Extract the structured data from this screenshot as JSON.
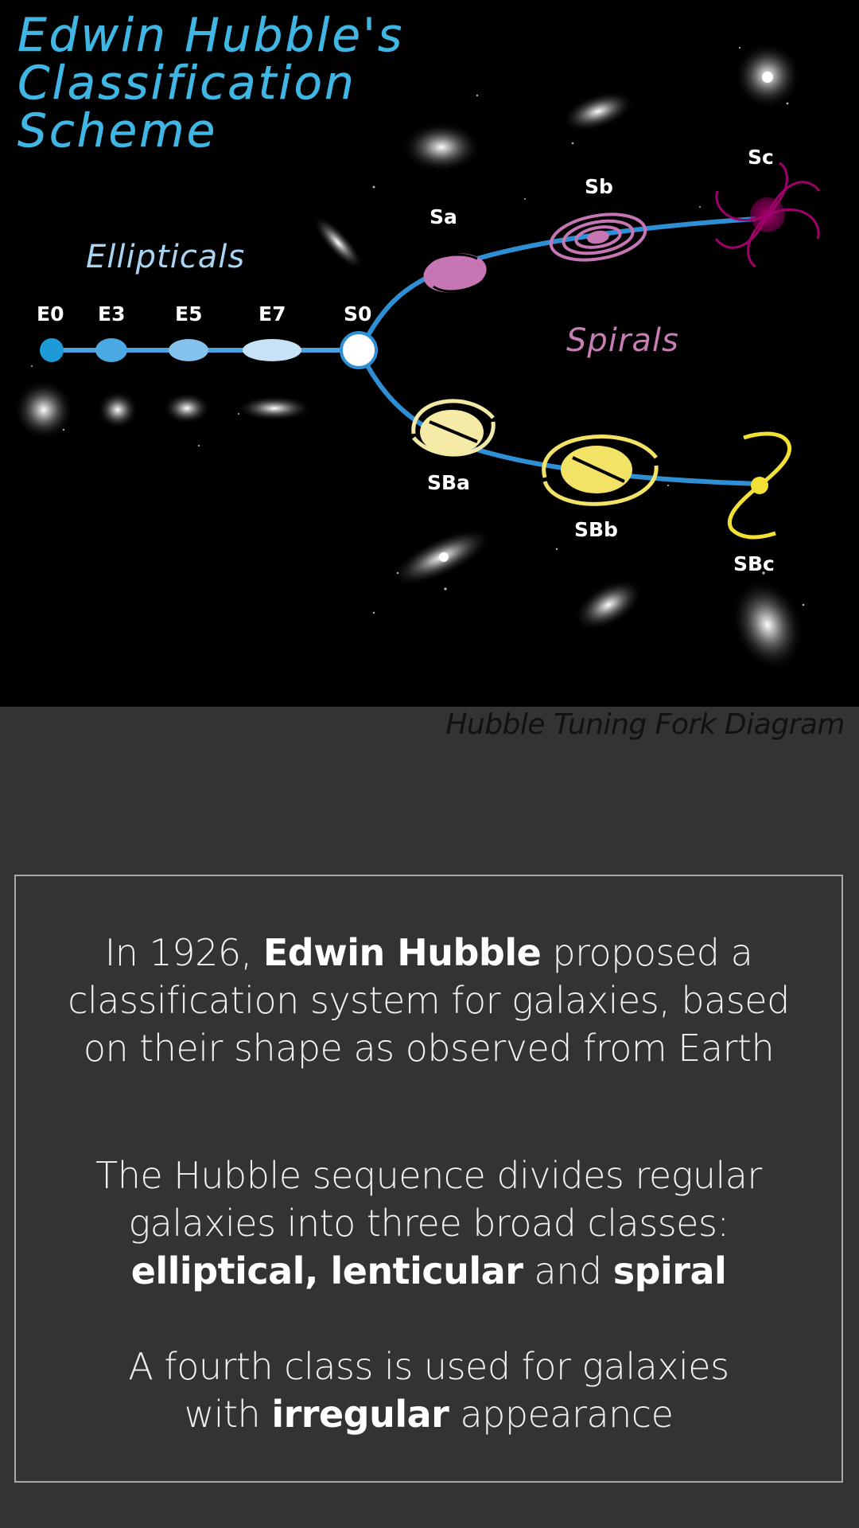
{
  "diagram": {
    "title_lines": [
      "Edwin Hubble's",
      "Classification",
      "Scheme"
    ],
    "group_labels": {
      "ellipticals": "Ellipticals",
      "spirals": "Spirals"
    },
    "elliptical_labels": [
      "E0",
      "E3",
      "E5",
      "E7"
    ],
    "lenticular_label": "S0",
    "spiral_labels": [
      "Sa",
      "Sb",
      "Sc"
    ],
    "barred_spiral_labels": [
      "SBa",
      "SBb",
      "SBc"
    ],
    "colors": {
      "title": "#3fb6e3",
      "ellipticals_label": "#a9d4f2",
      "spirals_label": "#c77eb5",
      "spiral_fill": "#c776b4",
      "barred_fill": "#f2e266",
      "branch_line": "#2f8fd4"
    }
  },
  "caption": "Hubble Tuning Fork Diagram",
  "info": {
    "p1": {
      "a": "In 1926,",
      "b": "Edwin Hubble",
      "c": "proposed a",
      "d": "classification system for galaxies, based",
      "e": "on their shape as observed from Earth"
    },
    "p2": {
      "a": "The Hubble sequence divides regular",
      "b": "galaxies into three broad classes:",
      "c": "elliptical, lenticular",
      "d": "and",
      "e": "spiral"
    },
    "p3": {
      "a": "A fourth class is used for galaxies",
      "b": "with",
      "c": "irregular",
      "d": "appearance"
    }
  }
}
